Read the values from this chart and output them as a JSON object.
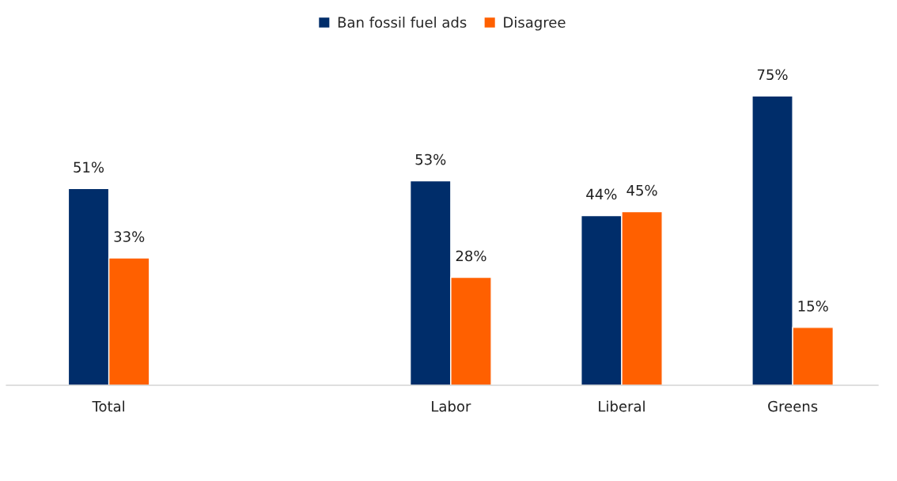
{
  "chart_data": {
    "type": "bar",
    "categories": [
      "Total",
      null,
      "Labor",
      "Liberal",
      "Greens"
    ],
    "series": [
      {
        "name": "Ban fossil fuel ads",
        "color": "#002d6a",
        "values": [
          51,
          null,
          53,
          44,
          75
        ],
        "value_labels": [
          "51%",
          null,
          "53%",
          "44%",
          "75%"
        ]
      },
      {
        "name": "Disagree",
        "color": "#ff6000",
        "values": [
          33,
          null,
          28,
          45,
          15
        ],
        "value_labels": [
          "33%",
          null,
          "28%",
          "45%",
          "15%"
        ]
      }
    ],
    "legend": "top",
    "grid": false
  }
}
